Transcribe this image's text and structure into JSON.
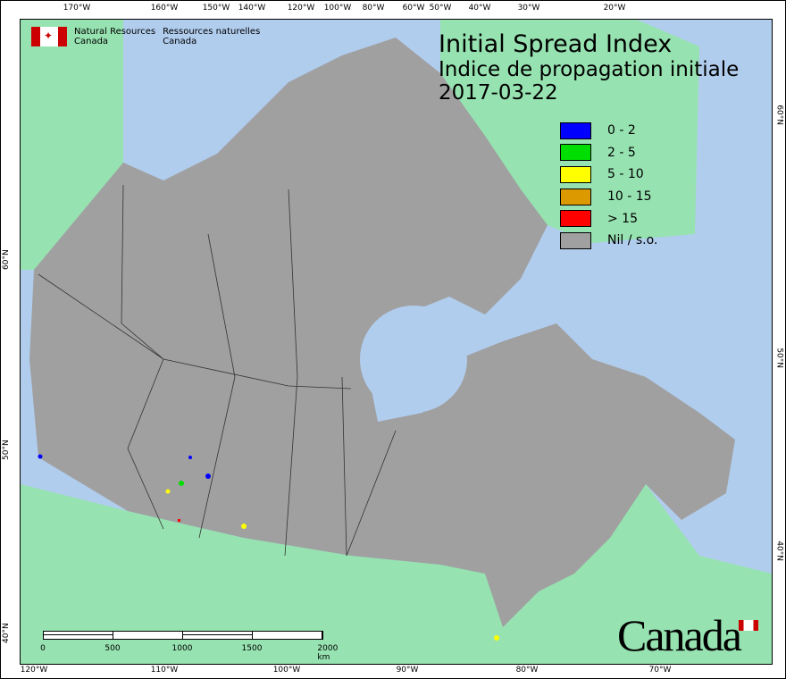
{
  "title": {
    "en": "Initial Spread Index",
    "fr": "Indice de propagation initiale",
    "date": "2017-03-22"
  },
  "agency": {
    "en_line1": "Natural Resources",
    "en_line2": "Canada",
    "fr_line1": "Ressources naturelles",
    "fr_line2": "Canada"
  },
  "wordmark": "Canada",
  "legend": [
    {
      "label": "0 - 2",
      "color": "#0000ff"
    },
    {
      "label": "2 - 5",
      "color": "#00dd00"
    },
    {
      "label": "5 - 10",
      "color": "#ffff00"
    },
    {
      "label": "10 - 15",
      "color": "#dd9900"
    },
    {
      "label": "> 15",
      "color": "#ff0000"
    },
    {
      "label": "Nil / s.o.",
      "color": "#a0a0a0"
    }
  ],
  "colors": {
    "water": "#b1cdee",
    "land_other": "#96e2b0",
    "canada": "#a0a0a0"
  },
  "ticks_top": [
    "170°W",
    "160°W",
    "150°W",
    "140°W",
    "120°W",
    "100°W",
    "80°W",
    "60°W",
    "50°W",
    "40°W",
    "30°W",
    "20°W"
  ],
  "ticks_bottom": [
    "120°W",
    "110°W",
    "100°W",
    "90°W",
    "80°W",
    "70°W"
  ],
  "ticks_left": [
    "60°N",
    "50°N",
    "40°N"
  ],
  "ticks_right": [
    "60°N",
    "50°N",
    "40°N"
  ],
  "scale": {
    "labels": [
      "0",
      "500",
      "1000",
      "1500",
      "2000"
    ],
    "unit": "km"
  }
}
